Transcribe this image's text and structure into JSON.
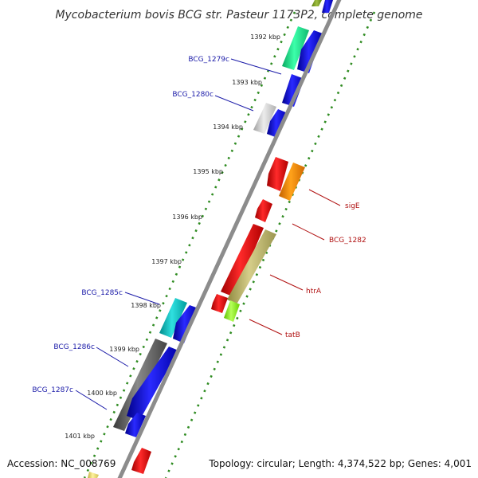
{
  "title": "Mycobacterium bovis BCG str. Pasteur 1173P2, complete genome",
  "accession": "Accession: NC_008769",
  "topology": "Topology: circular; Length: 4,374,522 bp; Genes: 4,001",
  "ticks": [
    "1392 kbp",
    "1393 kbp",
    "1394 kbp",
    "1395 kbp",
    "1396 kbp",
    "1397 kbp",
    "1398 kbp",
    "1399 kbp",
    "1400 kbp",
    "1401 kbp"
  ],
  "left_labels": [
    "BCG_1279c",
    "BCG_1280c",
    "BCG_1285c",
    "BCG_1286c",
    "BCG_1287c"
  ],
  "right_labels": [
    "sigE",
    "BCG_1282",
    "htrA",
    "tatB"
  ],
  "colors": {
    "backbone": "#8c8c8c",
    "dotted_track": "#2e8b20",
    "left_label": "#1a1aa8",
    "right_label": "#b01010",
    "cds_blue": "#1010dd",
    "gene_red": "#ee1010"
  }
}
